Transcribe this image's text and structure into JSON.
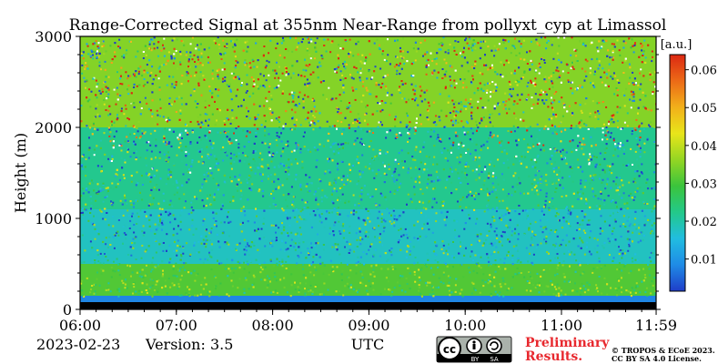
{
  "chart_data": {
    "type": "heatmap",
    "title": "Range-Corrected Signal at 355nm Near-Range from pollyxt_cyp at Limassol",
    "ylabel": "Height (m)",
    "xlabel": "UTC",
    "x_ticks": [
      "06:00",
      "07:00",
      "08:00",
      "09:00",
      "10:00",
      "11:00",
      "11:59"
    ],
    "xlim_hours": [
      6.0,
      11.983
    ],
    "y_ticks": [
      0,
      1000,
      2000,
      3000
    ],
    "ylim": [
      0,
      3000
    ],
    "colorbar": {
      "unit": "[a.u.]",
      "ticks": [
        0.01,
        0.02,
        0.03,
        0.04,
        0.05,
        0.06
      ],
      "range": [
        0.0015,
        0.064
      ],
      "colormap": [
        "#1f3dc8",
        "#1f8be6",
        "#21bde0",
        "#23c98a",
        "#3bc43c",
        "#94d623",
        "#e8e51a",
        "#f2b01a",
        "#ec6a17",
        "#dc2812"
      ]
    },
    "bands": [
      {
        "height_range": [
          0,
          80
        ],
        "value": 0.0
      },
      {
        "height_range": [
          80,
          150
        ],
        "value": 0.008
      },
      {
        "height_range": [
          150,
          500
        ],
        "value": 0.031
      },
      {
        "height_range": [
          500,
          1100
        ],
        "value": 0.018
      },
      {
        "height_range": [
          1100,
          2000
        ],
        "value": 0.022
      },
      {
        "height_range": [
          2000,
          3000
        ],
        "value": 0.035
      }
    ],
    "grid": false
  },
  "footer": {
    "date": "2023-02-23",
    "version": "Version: 3.5",
    "prelim_line1": "Preliminary",
    "prelim_line2": "Results.",
    "copyright_line1": "© TROPOS & ECoE 2023.",
    "copyright_line2": "CC BY SA 4.0 License."
  },
  "license_badge": {
    "by": "BY",
    "sa": "SA"
  }
}
